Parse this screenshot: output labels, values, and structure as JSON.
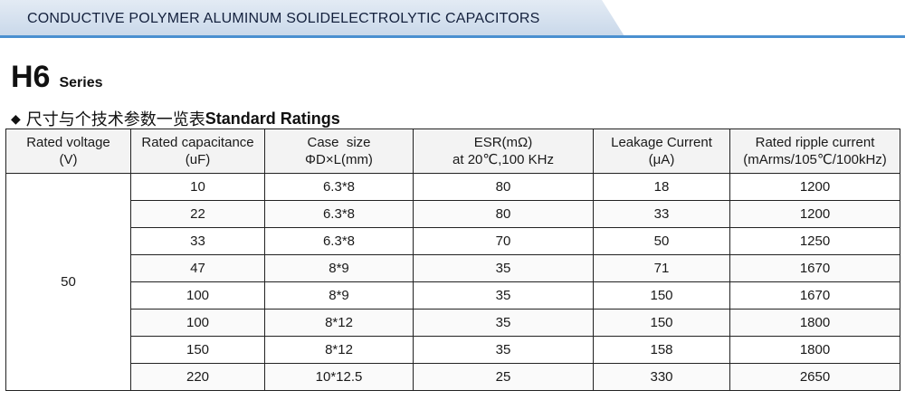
{
  "header": {
    "banner_title": "CONDUCTIVE POLYMER ALUMINUM SOLIDELECTROLYTIC CAPACITORS"
  },
  "series": {
    "code": "H6",
    "word": "Series"
  },
  "section": {
    "bullet": "◆",
    "heading_cn": "尺寸与个技术参数一览表",
    "heading_en": "Standard Ratings"
  },
  "table": {
    "columns": [
      {
        "line1": "Rated voltage",
        "line2": "(V)"
      },
      {
        "line1": "Rated capacitance",
        "line2": "(uF)"
      },
      {
        "line1": "Case  size",
        "line2": "ΦD×L(mm)"
      },
      {
        "line1": "ESR(mΩ)",
        "line2": "at 20℃,100 KHz"
      },
      {
        "line1": "Leakage Current",
        "line2": "(μA)"
      },
      {
        "line1": "Rated ripple current",
        "line2": "(mArms/105℃/100kHz)"
      }
    ],
    "rated_voltage": "50",
    "rows": [
      {
        "capacitance": "10",
        "case": "6.3*8",
        "esr": "80",
        "leakage": "18",
        "ripple": "1200"
      },
      {
        "capacitance": "22",
        "case": "6.3*8",
        "esr": "80",
        "leakage": "33",
        "ripple": "1200"
      },
      {
        "capacitance": "33",
        "case": "6.3*8",
        "esr": "70",
        "leakage": "50",
        "ripple": "1250"
      },
      {
        "capacitance": "47",
        "case": "8*9",
        "esr": "35",
        "leakage": "71",
        "ripple": "1670"
      },
      {
        "capacitance": "100",
        "case": "8*9",
        "esr": "35",
        "leakage": "150",
        "ripple": "1670"
      },
      {
        "capacitance": "100",
        "case": "8*12",
        "esr": "35",
        "leakage": "150",
        "ripple": "1800"
      },
      {
        "capacitance": "150",
        "case": "8*12",
        "esr": "35",
        "leakage": "158",
        "ripple": "1800"
      },
      {
        "capacitance": "220",
        "case": "10*12.5",
        "esr": "25",
        "leakage": "330",
        "ripple": "2650"
      }
    ]
  }
}
